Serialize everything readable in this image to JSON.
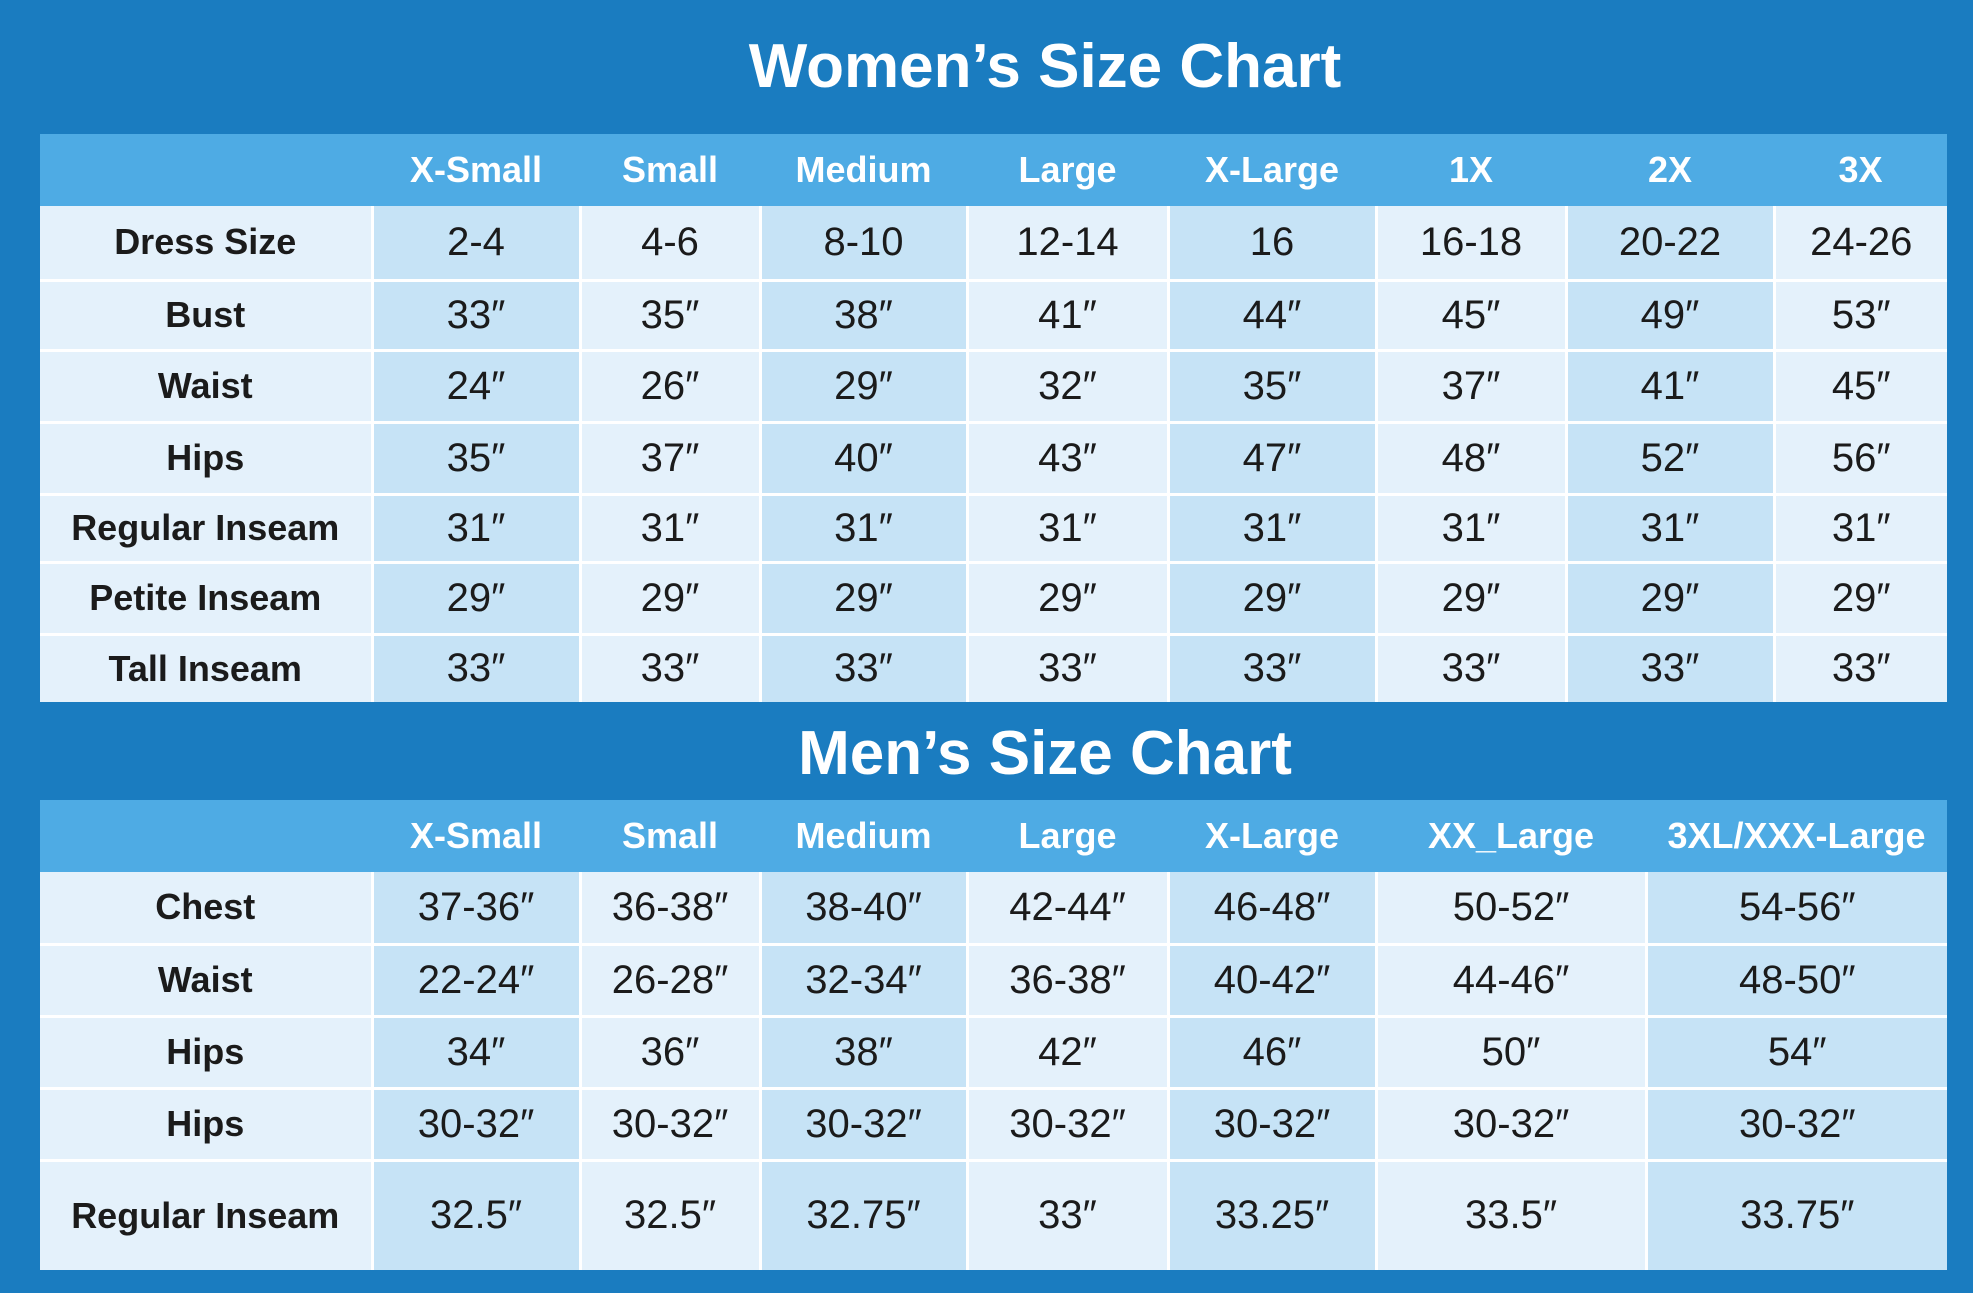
{
  "colors": {
    "background": "#1a7cc0",
    "header_band": "#4eabe4",
    "cell_light": "#e4f1fb",
    "cell_dark": "#c6e3f6",
    "text": "#1b1b1b",
    "header_text": "#ffffff"
  },
  "womens": {
    "title": "Women’s Size Chart",
    "columns": [
      "X-Small",
      "Small",
      "Medium",
      "Large",
      "X-Large",
      "1X",
      "2X",
      "3X"
    ],
    "rows": [
      {
        "label": "Dress Size",
        "values": [
          "2-4",
          "4-6",
          "8-10",
          "12-14",
          "16",
          "16-18",
          "20-22",
          "24-26"
        ]
      },
      {
        "label": "Bust",
        "values": [
          "33″",
          "35″",
          "38″",
          "41″",
          "44″",
          "45″",
          "49″",
          "53″"
        ]
      },
      {
        "label": "Waist",
        "values": [
          "24″",
          "26″",
          "29″",
          "32″",
          "35″",
          "37″",
          "41″",
          "45″"
        ]
      },
      {
        "label": "Hips",
        "values": [
          "35″",
          "37″",
          "40″",
          "43″",
          "47″",
          "48″",
          "52″",
          "56″"
        ]
      },
      {
        "label": "Regular Inseam",
        "values": [
          "31″",
          "31″",
          "31″",
          "31″",
          "31″",
          "31″",
          "31″",
          "31″"
        ]
      },
      {
        "label": "Petite Inseam",
        "values": [
          "29″",
          "29″",
          "29″",
          "29″",
          "29″",
          "29″",
          "29″",
          "29″"
        ]
      },
      {
        "label": "Tall Inseam",
        "values": [
          "33″",
          "33″",
          "33″",
          "33″",
          "33″",
          "33″",
          "33″",
          "33″"
        ]
      }
    ]
  },
  "mens": {
    "title": "Men’s Size Chart",
    "columns": [
      "X-Small",
      "Small",
      "Medium",
      "Large",
      "X-Large",
      "XX_Large",
      "3XL/XXX-Large"
    ],
    "rows": [
      {
        "label": "Chest",
        "values": [
          "37-36″",
          "36-38″",
          "38-40″",
          "42-44″",
          "46-48″",
          "50-52″",
          "54-56″"
        ]
      },
      {
        "label": "Waist",
        "values": [
          "22-24″",
          "26-28″",
          "32-34″",
          "36-38″",
          "40-42″",
          "44-46″",
          "48-50″"
        ]
      },
      {
        "label": "Hips",
        "values": [
          "34″",
          "36″",
          "38″",
          "42″",
          "46″",
          "50″",
          "54″"
        ]
      },
      {
        "label": "Hips",
        "values": [
          "30-32″",
          "30-32″",
          "30-32″",
          "30-32″",
          "30-32″",
          "30-32″",
          "30-32″"
        ]
      },
      {
        "label": "Regular Inseam",
        "values": [
          "32.5″",
          "32.5″",
          "32.75″",
          "33″",
          "33.25″",
          "33.5″",
          "33.75″"
        ]
      }
    ]
  }
}
